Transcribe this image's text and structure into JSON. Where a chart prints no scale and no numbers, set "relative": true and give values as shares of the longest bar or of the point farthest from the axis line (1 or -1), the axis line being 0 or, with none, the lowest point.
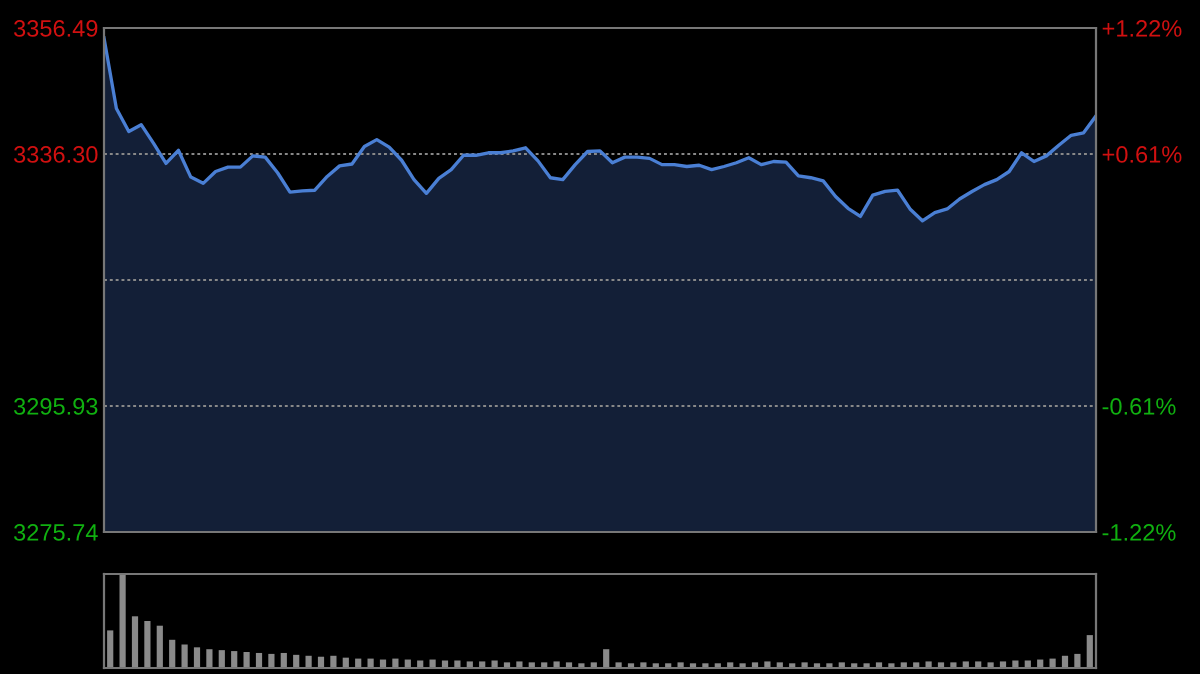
{
  "chart_data": [
    {
      "type": "area",
      "categories": [
        null,
        null,
        null,
        null,
        null,
        null,
        null,
        null,
        null,
        null,
        null,
        null,
        null,
        null,
        null,
        null,
        null,
        null,
        null,
        null,
        null,
        null,
        null,
        null,
        null,
        null,
        null,
        null,
        null,
        null,
        null,
        null,
        null,
        null,
        null,
        null,
        null,
        null,
        null,
        null,
        null,
        null,
        null,
        null,
        null,
        null,
        null,
        null,
        null,
        null,
        null,
        null,
        null,
        null,
        null,
        null,
        null,
        null,
        null,
        null,
        null,
        null,
        null,
        null,
        null,
        null,
        null,
        null,
        null,
        null,
        null,
        null,
        null,
        null,
        null,
        null,
        null,
        null,
        null,
        null,
        null
      ],
      "series": [
        {
          "color": "#4a7fd4",
          "values": [
            3354.9,
            3343.6,
            3339.9,
            3341.0,
            3338.0,
            3334.8,
            3336.9,
            3332.6,
            3331.6,
            3333.5,
            3334.2,
            3334.2,
            3336.0,
            3335.8,
            3333.3,
            3330.2,
            3330.4,
            3330.5,
            3332.7,
            3334.4,
            3334.7,
            3337.5,
            3338.6,
            3337.4,
            3335.3,
            3332.2,
            3330.0,
            3332.4,
            3333.8,
            3336.1,
            3336.1,
            3336.5,
            3336.5,
            3336.8,
            3337.3,
            3335.2,
            3332.5,
            3332.2,
            3334.6,
            3336.7,
            3336.8,
            3334.9,
            3335.8,
            3335.8,
            3335.6,
            3334.6,
            3334.6,
            3334.3,
            3334.5,
            3333.8,
            3334.3,
            3334.9,
            3335.7,
            3334.6,
            3335.1,
            3335.0,
            3332.8,
            3332.5,
            3332.0,
            3329.5,
            3327.6,
            3326.3,
            3329.7,
            3330.3,
            3330.5,
            3327.5,
            3325.6,
            3326.9,
            3327.5,
            3329.1,
            3330.3,
            3331.4,
            3332.2,
            3333.5,
            3336.5,
            3335.1,
            3336.0,
            3337.7,
            3339.3,
            3339.7,
            3342.4
          ]
        }
      ],
      "ylim": [
        3275.74,
        3356.49
      ],
      "yticks": [
        3275.74,
        3295.93,
        {
          "value": 3316.12,
          "label": null
        },
        {
          "value": 3336.3,
          "label": "3336.30"
        },
        3356.49
      ],
      "y2lim": [
        -1.22,
        1.22
      ],
      "y2ticks": [
        {
          "value": -1.22,
          "label": "-1.22%"
        },
        {
          "value": -0.61,
          "label": "-0.61%"
        },
        {
          "value": 0.61,
          "label": "+0.61%"
        },
        {
          "value": 1.22,
          "label": "+1.22%"
        }
      ],
      "grid": "y",
      "tick_labels": "y"
    },
    {
      "type": "bar",
      "relative": true,
      "categories": [
        null,
        null,
        null,
        null,
        null,
        null,
        null,
        null,
        null,
        null,
        null,
        null,
        null,
        null,
        null,
        null,
        null,
        null,
        null,
        null,
        null,
        null,
        null,
        null,
        null,
        null,
        null,
        null,
        null,
        null,
        null,
        null,
        null,
        null,
        null,
        null,
        null,
        null,
        null,
        null,
        null,
        null,
        null,
        null,
        null,
        null,
        null,
        null,
        null,
        null,
        null,
        null,
        null,
        null,
        null,
        null,
        null,
        null,
        null,
        null,
        null,
        null,
        null,
        null,
        null,
        null,
        null,
        null,
        null,
        null,
        null,
        null,
        null,
        null,
        null,
        null,
        null,
        null,
        null,
        null
      ],
      "series": [
        {
          "color": "#8a8a8a",
          "values": [
            0.4,
            1.0,
            0.55,
            0.5,
            0.45,
            0.3,
            0.25,
            0.22,
            0.2,
            0.19,
            0.18,
            0.17,
            0.16,
            0.15,
            0.16,
            0.14,
            0.13,
            0.12,
            0.13,
            0.11,
            0.1,
            0.1,
            0.09,
            0.1,
            0.09,
            0.08,
            0.09,
            0.08,
            0.08,
            0.07,
            0.07,
            0.08,
            0.06,
            0.07,
            0.06,
            0.06,
            0.07,
            0.06,
            0.05,
            0.06,
            0.2,
            0.06,
            0.05,
            0.06,
            0.05,
            0.05,
            0.06,
            0.05,
            0.05,
            0.05,
            0.06,
            0.05,
            0.06,
            0.07,
            0.06,
            0.05,
            0.06,
            0.05,
            0.05,
            0.06,
            0.05,
            0.05,
            0.06,
            0.05,
            0.06,
            0.06,
            0.07,
            0.06,
            0.06,
            0.07,
            0.07,
            0.06,
            0.07,
            0.08,
            0.08,
            0.09,
            0.1,
            0.13,
            0.15,
            0.35
          ]
        }
      ]
    }
  ]
}
